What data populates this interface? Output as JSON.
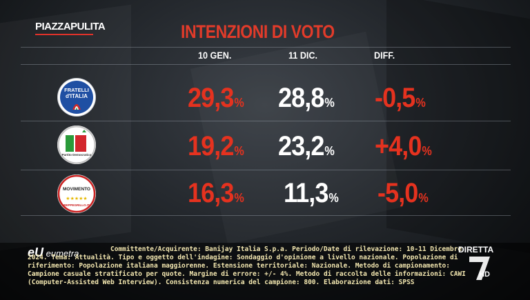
{
  "channel_logo": {
    "part1": "PIAZZA",
    "part2": "PULITA"
  },
  "title": "INTENZIONI DI VOTO",
  "columns": [
    "10 GEN.",
    "11 DIC.",
    "DIFF."
  ],
  "rows": [
    {
      "party": "Fratelli d'Italia",
      "emblem_line1": "FRATELLI",
      "emblem_line2": "d'ITALIA",
      "jan": "29,3",
      "dec": "28,8",
      "diff": "-0,5",
      "pct": "%"
    },
    {
      "party": "Partito Democratico",
      "emblem_line1": "PD",
      "emblem_line2": "Partito Democratico",
      "jan": "19,2",
      "dec": "23,2",
      "diff": "+4,0",
      "pct": "%"
    },
    {
      "party": "MoVimento 5 Stelle",
      "emblem_line1": "MOVIMENTO",
      "emblem_line2": "BEPPEGRILLO.IT",
      "jan": "16,3",
      "dec": "11,3",
      "diff": "-5,0",
      "pct": "%"
    }
  ],
  "footer": {
    "brand": "eumetra",
    "text": "Committente/Acquirente: Banijay Italia S.p.a. Periodo/Date di rilevazione: 10-11 Dicembre 2024. Tema: Attualità. Tipo e oggetto dell'indagine: Sondaggio d'opinione a livello nazionale. Popolazione di riferimento: Popolazione italiana maggiorenne. Estensione territoriale: Nazionale. Metodo di campionamento: Campione casuale stratificato per quote. Margine di errore: +/- 4%. Metodo di raccolta delle informazioni: CAWI (Computer-Assisted Web Interview). Consistenza numerica del campione: 800. Elaborazione dati: SPSS"
  },
  "broadcast": {
    "live_label": "DIRETTA",
    "network": "LA7",
    "hd": "HD"
  },
  "colors": {
    "accent_red": "#e5321f",
    "text_white": "#ffffff",
    "footer_text": "#f3e7b0"
  }
}
